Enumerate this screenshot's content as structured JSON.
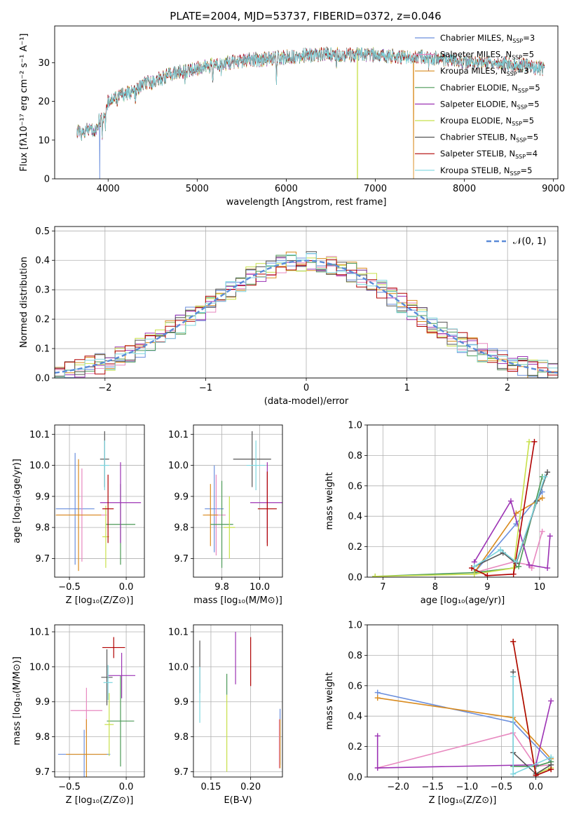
{
  "colors": {
    "Chabrier MILES": "#6b8fdd",
    "Salpeter MILES": "#e889c0",
    "Kroupa MILES": "#d98b1e",
    "Chabrier ELODIE": "#4c9a57",
    "Salpeter ELODIE": "#9c32b4",
    "Kroupa ELODIE": "#c8e04a",
    "Chabrier STELIB": "#555555",
    "Salpeter STELIB": "#b00000",
    "Kroupa STELIB": "#7dd6df"
  },
  "chart_data": [
    {
      "id": "spectrum",
      "type": "line",
      "title": "PLATE=2004, MJD=53737, FIBERID=0372, z=0.046",
      "xlabel": "wavelength [Angstrom, rest frame]",
      "ylabel": "Flux [fλ10⁻¹⁷ erg cm⁻² s⁻¹ A⁻¹]",
      "xlim": [
        3400,
        9050
      ],
      "ylim": [
        0,
        39.5
      ],
      "xticks": [
        4000,
        5000,
        6000,
        7000,
        8000,
        9000
      ],
      "yticks": [
        0,
        10,
        20,
        30
      ],
      "grid": false,
      "legend_position": "top-right",
      "continuum": {
        "x": [
          3650,
          3700,
          3800,
          3850,
          3900,
          3950,
          4000,
          4100,
          4200,
          4300,
          4400,
          4500,
          4700,
          5000,
          5200,
          5500,
          5800,
          6000,
          6300,
          6500,
          6800,
          7000,
          7300,
          7600,
          7900,
          8100,
          8300,
          8600,
          8900
        ],
        "y": [
          12.5,
          11.5,
          13,
          12,
          15,
          16,
          20,
          21.5,
          22,
          22.5,
          24.5,
          25,
          27,
          28.5,
          29.5,
          30.5,
          31,
          31.5,
          32,
          32.2,
          32,
          32,
          31.5,
          31.5,
          30.5,
          30,
          30,
          29.5,
          28.5
        ]
      },
      "series": [
        {
          "name": "Chabrier MILES",
          "nssp": "3"
        },
        {
          "name": "Salpeter MILES",
          "nssp": "5"
        },
        {
          "name": "Kroupa MILES",
          "nssp": "3"
        },
        {
          "name": "Chabrier ELODIE",
          "nssp": "5"
        },
        {
          "name": "Salpeter ELODIE",
          "nssp": "5"
        },
        {
          "name": "Kroupa ELODIE",
          "nssp": "5"
        },
        {
          "name": "Chabrier STELIB",
          "nssp": "5"
        },
        {
          "name": "Salpeter STELIB",
          "nssp": "4"
        },
        {
          "name": "Kroupa STELIB",
          "nssp": "5"
        }
      ]
    },
    {
      "id": "residuals",
      "type": "histogram",
      "xlabel": "(data-model)/error",
      "ylabel": "Normed distribution",
      "xlim": [
        -2.5,
        2.5
      ],
      "ylim": [
        0,
        0.515
      ],
      "xticks": [
        -2,
        -1,
        0,
        1,
        2
      ],
      "yticks": [
        0.0,
        0.1,
        0.2,
        0.3,
        0.4,
        0.5
      ],
      "grid": true,
      "bin_width": 0.1,
      "legend_position": "top-right",
      "legend_label": "𝒩(0, 1)",
      "reference_curve": {
        "mu": 0,
        "sigma": 1
      }
    },
    {
      "id": "age_vs_Z",
      "type": "errorbar",
      "xlabel": "Z [log₁₀(Z/Z⊙)]",
      "ylabel": "age  [log₁₀(age/yr)]",
      "xlim": [
        -0.63,
        0.16
      ],
      "ylim": [
        9.64,
        10.13
      ],
      "xticks": [
        -0.5,
        0.0
      ],
      "yticks": [
        9.7,
        9.8,
        9.9,
        10.0,
        10.1
      ],
      "grid": true,
      "points": [
        {
          "name": "Chabrier MILES",
          "x": -0.45,
          "xerr": 0.17,
          "y": 9.86,
          "yerr": 0.18
        },
        {
          "name": "Salpeter MILES",
          "x": -0.39,
          "xerr": 0.22,
          "y": 9.84,
          "yerr": 0.15
        },
        {
          "name": "Kroupa MILES",
          "x": -0.42,
          "xerr": 0.2,
          "y": 9.84,
          "yerr": 0.18
        },
        {
          "name": "Chabrier ELODIE",
          "x": -0.05,
          "xerr": 0.13,
          "y": 9.81,
          "yerr": 0.13
        },
        {
          "name": "Salpeter ELODIE",
          "x": -0.05,
          "xerr": 0.18,
          "y": 9.88,
          "yerr": 0.13
        },
        {
          "name": "Kroupa ELODIE",
          "x": -0.18,
          "xerr": 0.03,
          "y": 9.77,
          "yerr": 0.1
        },
        {
          "name": "Chabrier STELIB",
          "x": -0.19,
          "xerr": 0.04,
          "y": 10.02,
          "yerr": 0.09
        },
        {
          "name": "Salpeter STELIB",
          "x": -0.16,
          "xerr": 0.05,
          "y": 9.86,
          "yerr": 0.11
        },
        {
          "name": "Kroupa STELIB",
          "x": -0.19,
          "xerr": 0.04,
          "y": 10.0,
          "yerr": 0.08
        }
      ]
    },
    {
      "id": "age_vs_mass",
      "type": "errorbar",
      "xlabel": "mass [log₁₀(M/M⊙)]",
      "xlim": [
        9.65,
        10.12
      ],
      "ylim": [
        9.64,
        10.13
      ],
      "xticks": [
        9.8,
        10.0
      ],
      "yticks": [
        9.7,
        9.8,
        9.9,
        10.0,
        10.1
      ],
      "grid": true,
      "points": [
        {
          "name": "Chabrier MILES",
          "x": 9.76,
          "xerr": 0.05,
          "y": 9.86,
          "yerr": 0.14
        },
        {
          "name": "Salpeter MILES",
          "x": 9.77,
          "xerr": 0.05,
          "y": 9.84,
          "yerr": 0.13
        },
        {
          "name": "Kroupa MILES",
          "x": 9.74,
          "xerr": 0.04,
          "y": 9.84,
          "yerr": 0.1
        },
        {
          "name": "Chabrier ELODIE",
          "x": 9.8,
          "xerr": 0.06,
          "y": 9.81,
          "yerr": 0.14
        },
        {
          "name": "Salpeter ELODIE",
          "x": 10.04,
          "xerr": 0.09,
          "y": 9.88,
          "yerr": 0.13
        },
        {
          "name": "Kroupa ELODIE",
          "x": 9.84,
          "xerr": 0.03,
          "y": 9.8,
          "yerr": 0.1
        },
        {
          "name": "Chabrier STELIB",
          "x": 9.96,
          "xerr": 0.1,
          "y": 10.02,
          "yerr": 0.09
        },
        {
          "name": "Salpeter STELIB",
          "x": 10.04,
          "xerr": 0.05,
          "y": 9.86,
          "yerr": 0.12
        },
        {
          "name": "Kroupa STELIB",
          "x": 9.98,
          "xerr": 0.05,
          "y": 10.0,
          "yerr": 0.08
        }
      ]
    },
    {
      "id": "mass_weight_vs_age",
      "type": "line",
      "xlabel": "age  [log₁₀(age/yr)]",
      "ylabel": "mass weight",
      "xlim": [
        6.7,
        10.35
      ],
      "ylim": [
        0,
        1.0
      ],
      "xticks": [
        7,
        8,
        9,
        10
      ],
      "yticks": [
        0.0,
        0.2,
        0.4,
        0.6,
        0.8,
        1.0
      ],
      "grid": true,
      "series": [
        {
          "name": "Chabrier MILES",
          "x": [
            8.75,
            9.55,
            10.05
          ],
          "y": [
            0.03,
            0.35,
            0.56
          ]
        },
        {
          "name": "Salpeter MILES",
          "x": [
            8.75,
            9.5,
            9.8,
            9.85,
            10.05
          ],
          "y": [
            0.03,
            0.1,
            0.08,
            0.06,
            0.3
          ]
        },
        {
          "name": "Kroupa MILES",
          "x": [
            8.75,
            9.55,
            10.05
          ],
          "y": [
            0.03,
            0.42,
            0.52
          ]
        },
        {
          "name": "Chabrier ELODIE",
          "x": [
            6.85,
            8.75,
            9.5,
            9.6,
            10.05
          ],
          "y": [
            0.005,
            0.03,
            0.06,
            0.07,
            0.66
          ]
        },
        {
          "name": "Salpeter ELODIE",
          "x": [
            8.75,
            9.45,
            9.8,
            10.15,
            10.2
          ],
          "y": [
            0.1,
            0.5,
            0.08,
            0.06,
            0.27
          ]
        },
        {
          "name": "Kroupa ELODIE",
          "x": [
            6.85,
            8.75,
            9.5,
            9.8
          ],
          "y": [
            0.005,
            0.02,
            0.06,
            0.89
          ]
        },
        {
          "name": "Chabrier STELIB",
          "x": [
            8.75,
            9.3,
            9.55,
            9.95,
            10.15
          ],
          "y": [
            0.07,
            0.16,
            0.09,
            0.5,
            0.69
          ]
        },
        {
          "name": "Salpeter STELIB",
          "x": [
            8.7,
            9.0,
            9.5,
            9.9
          ],
          "y": [
            0.06,
            0.01,
            0.02,
            0.89
          ]
        },
        {
          "name": "Kroupa STELIB",
          "x": [
            8.75,
            9.25,
            9.55,
            10.1
          ],
          "y": [
            0.07,
            0.18,
            0.1,
            0.66
          ]
        }
      ]
    },
    {
      "id": "mass_vs_Z",
      "type": "errorbar",
      "xlabel": "Z [log₁₀(Z/Z⊙)]",
      "ylabel": "mass [log₁₀(M/M⊙)]",
      "xlim": [
        -0.63,
        0.16
      ],
      "ylim": [
        9.685,
        10.12
      ],
      "xticks": [
        -0.5,
        0.0
      ],
      "yticks": [
        9.7,
        9.8,
        9.9,
        10.0,
        10.1
      ],
      "grid": true,
      "points": [
        {
          "name": "Chabrier MILES",
          "x": -0.37,
          "xerr": 0.23,
          "y": 9.75,
          "yerr": 0.07
        },
        {
          "name": "Salpeter MILES",
          "x": -0.35,
          "xerr": 0.14,
          "y": 9.875,
          "yerr": 0.065
        },
        {
          "name": "Kroupa MILES",
          "x": -0.35,
          "xerr": 0.18,
          "y": 9.75,
          "yerr": 0.1
        },
        {
          "name": "Chabrier ELODIE",
          "x": -0.05,
          "xerr": 0.12,
          "y": 9.845,
          "yerr": 0.13
        },
        {
          "name": "Salpeter ELODIE",
          "x": -0.04,
          "xerr": 0.12,
          "y": 9.975,
          "yerr": 0.065
        },
        {
          "name": "Kroupa ELODIE",
          "x": -0.15,
          "xerr": 0.04,
          "y": 9.835,
          "yerr": 0.09
        },
        {
          "name": "Chabrier STELIB",
          "x": -0.17,
          "xerr": 0.05,
          "y": 9.97,
          "yerr": 0.08
        },
        {
          "name": "Salpeter STELIB",
          "x": -0.11,
          "xerr": 0.1,
          "y": 10.055,
          "yerr": 0.03
        },
        {
          "name": "Kroupa STELIB",
          "x": -0.16,
          "xerr": 0.04,
          "y": 9.955,
          "yerr": 0.05
        }
      ]
    },
    {
      "id": "mass_vs_ebv",
      "type": "errorbar",
      "xlabel": "E(B-V)",
      "xlim": [
        0.128,
        0.24
      ],
      "ylim": [
        9.685,
        10.12
      ],
      "xticks": [
        0.15,
        0.2
      ],
      "yticks": [
        9.7,
        9.8,
        9.9,
        10.0,
        10.1
      ],
      "grid": true,
      "points": [
        {
          "name": "Chabrier MILES",
          "x": 0.237,
          "xerr": 0,
          "y": 9.8,
          "yerr": 0.08
        },
        {
          "name": "Salpeter MILES",
          "x": 0.236,
          "xerr": 0,
          "y": 9.78,
          "yerr": 0.07
        },
        {
          "name": "Kroupa MILES",
          "x": 0.237,
          "xerr": 0,
          "y": 9.78,
          "yerr": 0.07
        },
        {
          "name": "Chabrier ELODIE",
          "x": 0.17,
          "xerr": 0,
          "y": 9.95,
          "yerr": 0.03
        },
        {
          "name": "Salpeter ELODIE",
          "x": 0.181,
          "xerr": 0,
          "y": 10.025,
          "yerr": 0.075
        },
        {
          "name": "Kroupa ELODIE",
          "x": 0.17,
          "xerr": 0,
          "y": 9.81,
          "yerr": 0.11
        },
        {
          "name": "Chabrier STELIB",
          "x": 0.136,
          "xerr": 0,
          "y": 10.0,
          "yerr": 0.075
        },
        {
          "name": "Salpeter STELIB",
          "x": 0.2,
          "xerr": 0,
          "y": 10.015,
          "yerr": 0.07
        },
        {
          "name": "Kroupa STELIB",
          "x": 0.136,
          "xerr": 0,
          "y": 9.92,
          "yerr": 0.08
        }
      ]
    },
    {
      "id": "mass_weight_vs_Z",
      "type": "line",
      "xlabel": "Z [log₁₀(Z/Z⊙)]",
      "ylabel": "mass weight",
      "xlim": [
        -2.45,
        0.32
      ],
      "ylim": [
        0,
        1.0
      ],
      "xticks": [
        -2.0,
        -1.5,
        -1.0,
        -0.5,
        0.0
      ],
      "yticks": [
        0.0,
        0.2,
        0.4,
        0.6,
        0.8,
        1.0
      ],
      "grid": true,
      "series": [
        {
          "name": "Chabrier MILES",
          "x": [
            -2.3,
            -0.33,
            0.22
          ],
          "y": [
            0.555,
            0.36,
            0.1
          ]
        },
        {
          "name": "Salpeter MILES",
          "x": [
            -2.3,
            -0.33,
            0.0,
            0.22
          ],
          "y": [
            0.06,
            0.29,
            0.07,
            0.08
          ]
        },
        {
          "name": "Kroupa MILES",
          "x": [
            -2.3,
            -0.33,
            0.22
          ],
          "y": [
            0.52,
            0.39,
            0.12
          ]
        },
        {
          "name": "Chabrier ELODIE",
          "x": [
            -0.33,
            0.0,
            0.22
          ],
          "y": [
            0.07,
            0.07,
            0.1
          ]
        },
        {
          "name": "Salpeter ELODIE",
          "x": [
            -2.3,
            -2.3,
            0.0,
            0.22
          ],
          "y": [
            0.27,
            0.06,
            0.08,
            0.5
          ]
        },
        {
          "name": "Kroupa ELODIE",
          "x": [
            -0.33,
            0.0,
            0.22
          ],
          "y": [
            0.89,
            0.02,
            0.06
          ]
        },
        {
          "name": "Chabrier STELIB",
          "x": [
            -0.33,
            -0.33,
            0.0,
            0.22
          ],
          "y": [
            0.69,
            0.16,
            0.02,
            0.08
          ]
        },
        {
          "name": "Salpeter STELIB",
          "x": [
            -0.33,
            0.0,
            0.22
          ],
          "y": [
            0.89,
            0.01,
            0.05
          ]
        },
        {
          "name": "Kroupa STELIB",
          "x": [
            -0.33,
            -0.33,
            0.22
          ],
          "y": [
            0.66,
            0.02,
            0.13
          ]
        }
      ]
    }
  ]
}
